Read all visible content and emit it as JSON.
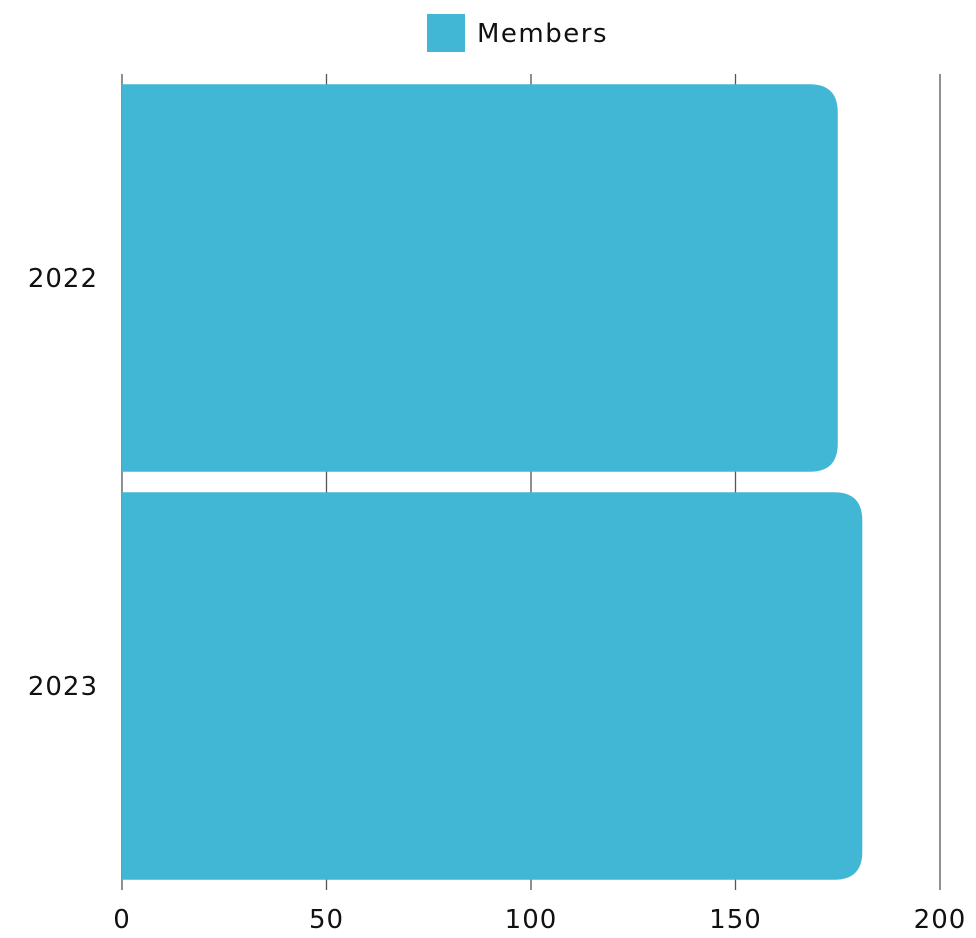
{
  "chart_data": {
    "type": "bar",
    "orientation": "horizontal",
    "categories": [
      "2022",
      "2023"
    ],
    "series": [
      {
        "name": "Members",
        "values": [
          175,
          181
        ],
        "color": "#42b6d5"
      }
    ],
    "xlim": [
      0,
      200
    ],
    "xticks": [
      "0",
      "50",
      "100",
      "150",
      "200"
    ],
    "grid": true,
    "legend_position": "top-center"
  }
}
